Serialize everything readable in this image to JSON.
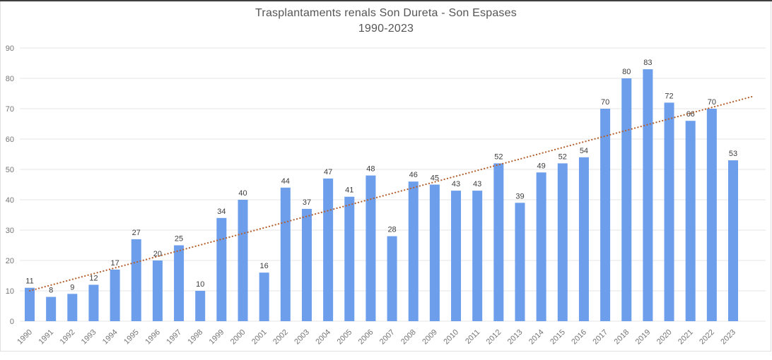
{
  "header": {
    "title": "Trasplantaments renals Son Dureta - Son Espases",
    "subtitle": "1990-2023"
  },
  "chart_data": {
    "type": "bar",
    "title": "Trasplantaments renals Son Dureta - Son Espases",
    "subtitle": "1990-2023",
    "categories": [
      "1990",
      "1991",
      "1992",
      "1993",
      "1994",
      "1995",
      "1996",
      "1997",
      "1998",
      "1999",
      "2000",
      "2001",
      "2002",
      "2003",
      "2004",
      "2005",
      "2006",
      "2007",
      "2008",
      "2009",
      "2010",
      "2011",
      "2012",
      "2013",
      "2014",
      "2015",
      "2016",
      "2017",
      "2018",
      "2019",
      "2020",
      "2021",
      "2022",
      "2023"
    ],
    "values": [
      11,
      8,
      9,
      12,
      17,
      27,
      20,
      25,
      10,
      34,
      40,
      16,
      44,
      37,
      47,
      41,
      48,
      28,
      46,
      45,
      43,
      43,
      52,
      39,
      49,
      52,
      54,
      70,
      80,
      83,
      72,
      66,
      70,
      53
    ],
    "value_labels_shown": true,
    "xlabel": "",
    "ylabel": "",
    "ylim": [
      0,
      90
    ],
    "yticks": [
      0,
      10,
      20,
      30,
      40,
      50,
      60,
      70,
      80,
      90
    ],
    "grid": true,
    "legend_position": "none",
    "bar_color": "#6d9eeb",
    "value_label_color": "#3c3c3c",
    "axis_tick_color": "#757575",
    "gridline_color": "#e4e4e4",
    "trendline": {
      "type": "linear",
      "style": "dotted",
      "color": "#b5612f",
      "start_value": 10,
      "end_value": 74
    }
  }
}
